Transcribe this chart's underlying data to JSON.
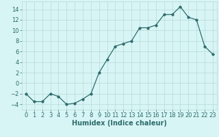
{
  "x": [
    0,
    1,
    2,
    3,
    4,
    5,
    6,
    7,
    8,
    9,
    10,
    11,
    12,
    13,
    14,
    15,
    16,
    17,
    18,
    19,
    20,
    21,
    22,
    23
  ],
  "y": [
    -2,
    -3.5,
    -3.5,
    -2,
    -2.5,
    -4,
    -3.8,
    -3,
    -2,
    2,
    4.5,
    7,
    7.5,
    8,
    10.5,
    10.5,
    11,
    13,
    13,
    14.5,
    12.5,
    12,
    7,
    5.5
  ],
  "line_color": "#2d6b6b",
  "marker": "o",
  "marker_size": 2.5,
  "bg_color": "#d8f5f5",
  "grid_color": "#b8d8d8",
  "xlabel": "Humidex (Indice chaleur)",
  "xlabel_fontsize": 7,
  "tick_fontsize": 6,
  "ylim": [
    -5,
    15.5
  ],
  "xlim": [
    -0.5,
    23.5
  ],
  "yticks": [
    -4,
    -2,
    0,
    2,
    4,
    6,
    8,
    10,
    12,
    14
  ],
  "xticks": [
    0,
    1,
    2,
    3,
    4,
    5,
    6,
    7,
    8,
    9,
    10,
    11,
    12,
    13,
    14,
    15,
    16,
    17,
    18,
    19,
    20,
    21,
    22,
    23
  ]
}
